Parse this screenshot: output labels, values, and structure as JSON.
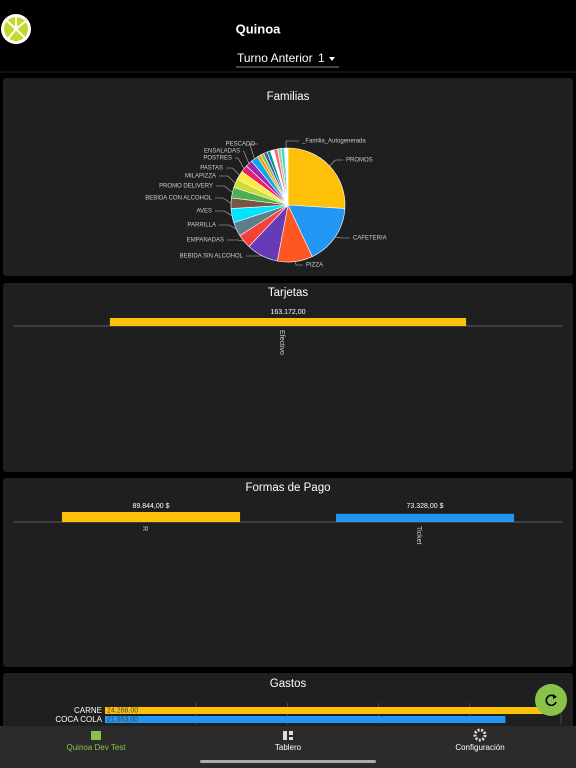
{
  "header": {
    "title": "Quinoa",
    "selector": "Turno Anterior",
    "selector_value": "1"
  },
  "charts": [
    {
      "type": "pie",
      "title": "Familias",
      "categories": [
        "PROMOS",
        "CAFETERIA",
        "PIZZA",
        "BEBIDA SIN ALCOHOL",
        "EMPANADAS",
        "PARRILLA",
        "AVES",
        "BEBIDA CON ALCOHOL",
        "PROMO DELIVERY",
        "MILAPIZZA",
        "PASTAS",
        "POSTRES",
        "ENSALADAS",
        "PESCADO",
        null,
        null,
        null,
        null,
        null,
        null,
        null,
        null,
        "_Familia_Autogenerada"
      ],
      "values": [
        26,
        17,
        10,
        9,
        4,
        4,
        4,
        3,
        3,
        2.5,
        2.5,
        2,
        2,
        2,
        1,
        1,
        1,
        1,
        1,
        1,
        1,
        1,
        1
      ],
      "colors": [
        "#ffc107",
        "#2196f3",
        "#ff5722",
        "#673ab7",
        "#f44336",
        "#607d8b",
        "#00e5ff",
        "#795548",
        "#4caf50",
        "#cddc39",
        "#ffeb3b",
        "#e91e63",
        "#9c27b0",
        "#03a9f4",
        "#ff9800",
        "#8bc34a",
        "#3f51b5",
        "#009688",
        "#ffffff",
        "#f06292",
        "#aed581",
        "#4dd0e1",
        "#ffffff"
      ]
    },
    {
      "type": "bar",
      "title": "Tarjetas",
      "categories": [
        "Efectivo"
      ],
      "values": [
        163172
      ],
      "value_labels": [
        "163.172,00"
      ],
      "colors": [
        "#ffc107"
      ]
    },
    {
      "type": "bar",
      "title": "Formas de Pago",
      "categories": [
        "R",
        "Ticket"
      ],
      "values": [
        89844,
        73328
      ],
      "value_labels": [
        "89.844,00 $",
        "73.328,00 $"
      ],
      "colors": [
        "#ffc107",
        "#2196f3"
      ]
    },
    {
      "type": "hbar",
      "title": "Gastos",
      "categories": [
        "CARNE",
        "COCA COLA"
      ],
      "values": [
        24288,
        21953
      ],
      "value_labels": [
        "24.288,00",
        "21.953,00"
      ],
      "colors": [
        "#ffc107",
        "#2196f3"
      ],
      "xlim": [
        0,
        25000
      ],
      "xticks": [
        5000,
        10000,
        15000,
        20000,
        25000
      ]
    }
  ],
  "nav": {
    "items": [
      "Quinoa Dev Test",
      "Tablero",
      "Configuración"
    ]
  }
}
